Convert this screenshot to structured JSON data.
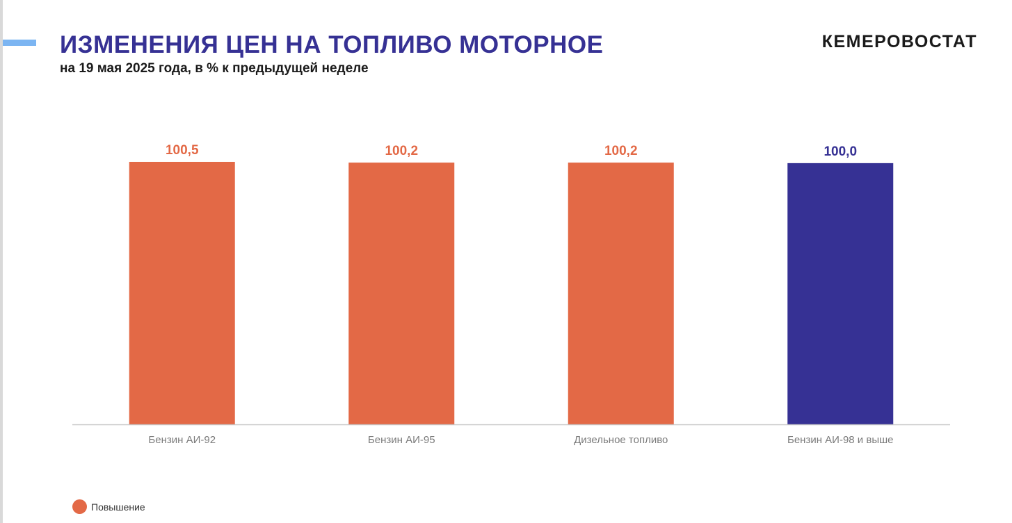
{
  "header": {
    "title": "ИЗМЕНЕНИЯ ЦЕН НА ТОПЛИВО МОТОРНОЕ",
    "subtitle": "на 19 мая 2025 года, в % к предыдущей неделе",
    "brand": "КЕМЕРОВОСТАТ"
  },
  "colors": {
    "increase": "#e36946",
    "no_change": "#363194",
    "axis": "#c8c8c8",
    "tick_label": "#7a7a7a",
    "accent": "#7cb5f2"
  },
  "legend": {
    "items": [
      {
        "label": "Повышение",
        "color": "#e36946"
      }
    ]
  },
  "chart_data": {
    "type": "bar",
    "categories": [
      "Бензин АИ-92",
      "Бензин АИ-95",
      "Дизельное топливо",
      "Бензин АИ-98 и выше"
    ],
    "values": [
      100.5,
      100.2,
      100.2,
      100.0
    ],
    "value_labels": [
      "100,5",
      "100,2",
      "100,2",
      "100,0"
    ],
    "bar_colors": [
      "#e36946",
      "#e36946",
      "#e36946",
      "#363194"
    ],
    "title": "",
    "xlabel": "",
    "ylabel": "",
    "grid": false,
    "legend_position": "bottom-left"
  }
}
